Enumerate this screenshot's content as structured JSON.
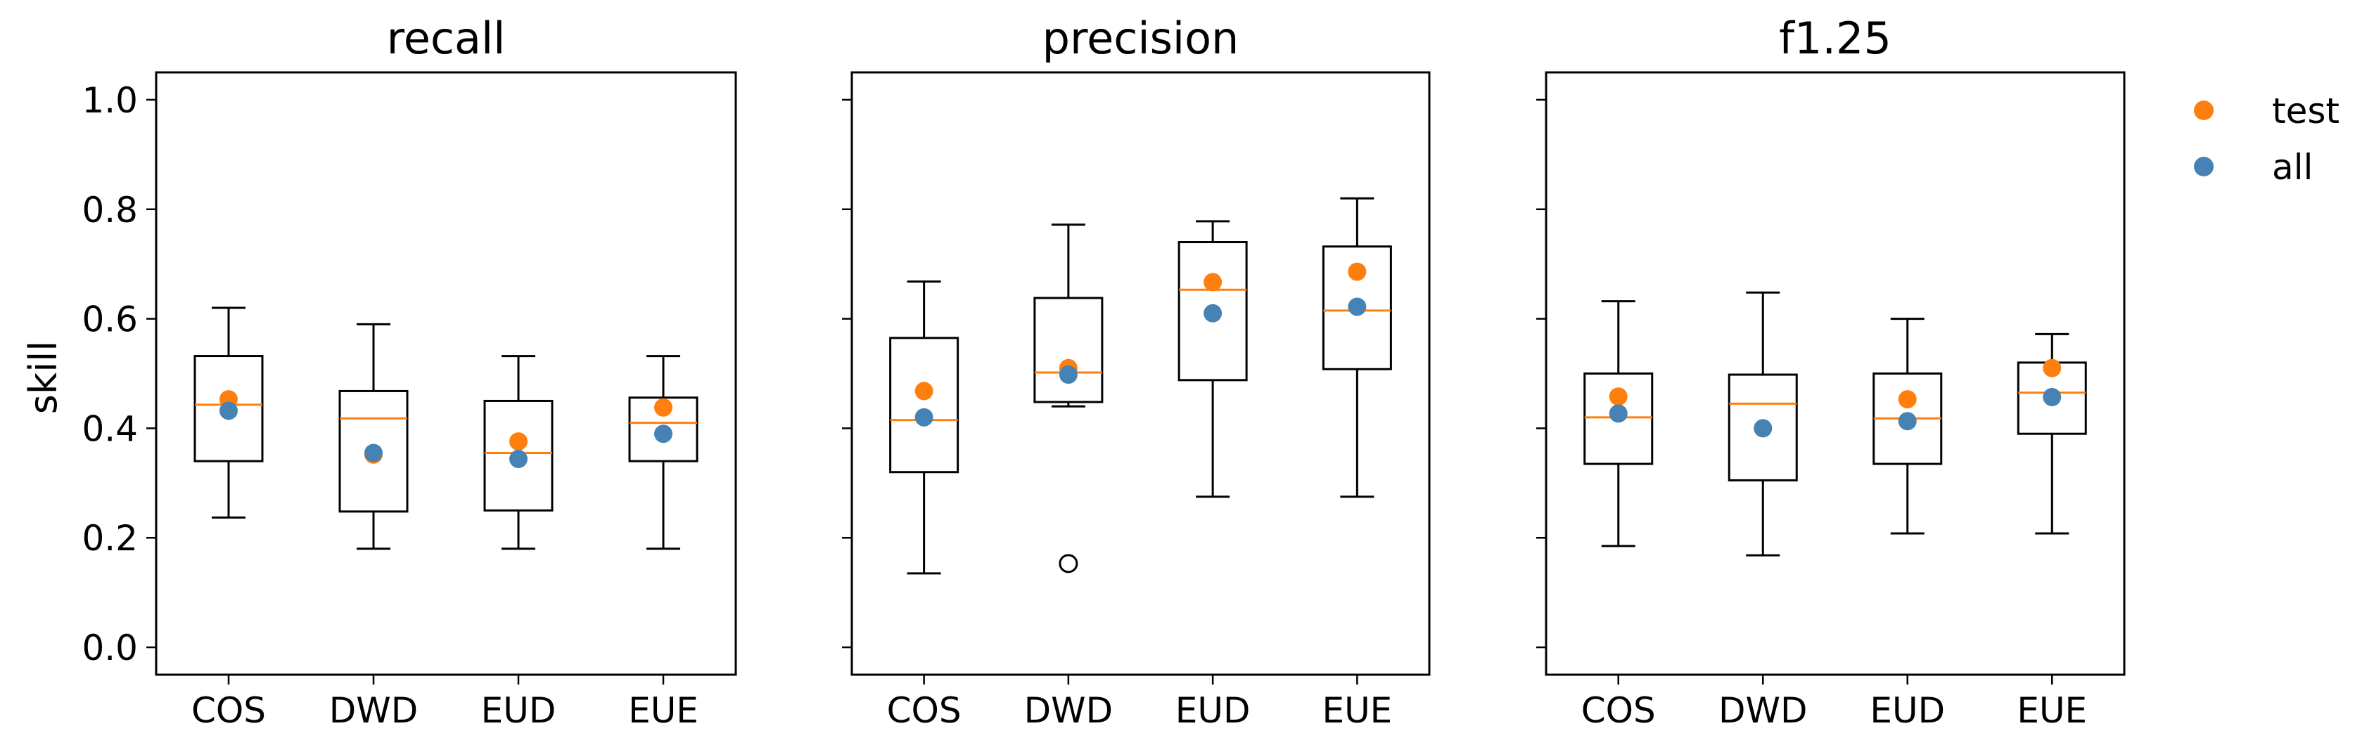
{
  "chart_data": {
    "type": "box",
    "ylabel": "skill",
    "ylim": [
      -0.05,
      1.05
    ],
    "yticks": [
      0.0,
      0.2,
      0.4,
      0.6,
      0.8,
      1.0
    ],
    "ytick_labels": [
      "0.0",
      "0.2",
      "0.4",
      "0.6",
      "0.8",
      "1.0"
    ],
    "categories": [
      "COS",
      "DWD",
      "EUD",
      "EUE"
    ],
    "grid": false,
    "legend_position": "right",
    "legend": [
      {
        "name": "test",
        "color": "#ff7f0e"
      },
      {
        "name": "all",
        "color": "#4682b4"
      }
    ],
    "colors": {
      "median": "#ff7f0e",
      "test": "#ff7f0e",
      "all": "#4682b4",
      "box": "#000000"
    },
    "panels": [
      {
        "title": "recall",
        "boxes": [
          {
            "category": "COS",
            "whislo": 0.237,
            "q1": 0.34,
            "med": 0.443,
            "q3": 0.532,
            "whishi": 0.62,
            "fliers": []
          },
          {
            "category": "DWD",
            "whislo": 0.18,
            "q1": 0.248,
            "med": 0.418,
            "q3": 0.468,
            "whishi": 0.59,
            "fliers": []
          },
          {
            "category": "EUD",
            "whislo": 0.18,
            "q1": 0.25,
            "med": 0.355,
            "q3": 0.45,
            "whishi": 0.532,
            "fliers": []
          },
          {
            "category": "EUE",
            "whislo": 0.18,
            "q1": 0.34,
            "med": 0.41,
            "q3": 0.456,
            "whishi": 0.532,
            "fliers": []
          }
        ],
        "test": [
          0.453,
          0.352,
          0.376,
          0.438
        ],
        "all": [
          0.432,
          0.355,
          0.344,
          0.39
        ]
      },
      {
        "title": "precision",
        "boxes": [
          {
            "category": "COS",
            "whislo": 0.135,
            "q1": 0.32,
            "med": 0.415,
            "q3": 0.565,
            "whishi": 0.668,
            "fliers": []
          },
          {
            "category": "DWD",
            "whislo": 0.44,
            "q1": 0.448,
            "med": 0.502,
            "q3": 0.638,
            "whishi": 0.772,
            "fliers": [
              0.153
            ]
          },
          {
            "category": "EUD",
            "whislo": 0.275,
            "q1": 0.488,
            "med": 0.653,
            "q3": 0.74,
            "whishi": 0.778,
            "fliers": []
          },
          {
            "category": "EUE",
            "whislo": 0.275,
            "q1": 0.508,
            "med": 0.615,
            "q3": 0.732,
            "whishi": 0.82,
            "fliers": []
          }
        ],
        "test": [
          0.468,
          0.51,
          0.667,
          0.686
        ],
        "all": [
          0.42,
          0.498,
          0.61,
          0.622
        ]
      },
      {
        "title": "f1.25",
        "boxes": [
          {
            "category": "COS",
            "whislo": 0.185,
            "q1": 0.335,
            "med": 0.42,
            "q3": 0.5,
            "whishi": 0.632,
            "fliers": []
          },
          {
            "category": "DWD",
            "whislo": 0.168,
            "q1": 0.305,
            "med": 0.445,
            "q3": 0.498,
            "whishi": 0.648,
            "fliers": []
          },
          {
            "category": "EUD",
            "whislo": 0.208,
            "q1": 0.335,
            "med": 0.418,
            "q3": 0.5,
            "whishi": 0.6,
            "fliers": []
          },
          {
            "category": "EUE",
            "whislo": 0.208,
            "q1": 0.39,
            "med": 0.465,
            "q3": 0.52,
            "whishi": 0.572,
            "fliers": []
          }
        ],
        "test": [
          0.458,
          0.4,
          0.453,
          0.51
        ],
        "all": [
          0.427,
          0.4,
          0.413,
          0.457
        ]
      }
    ]
  }
}
